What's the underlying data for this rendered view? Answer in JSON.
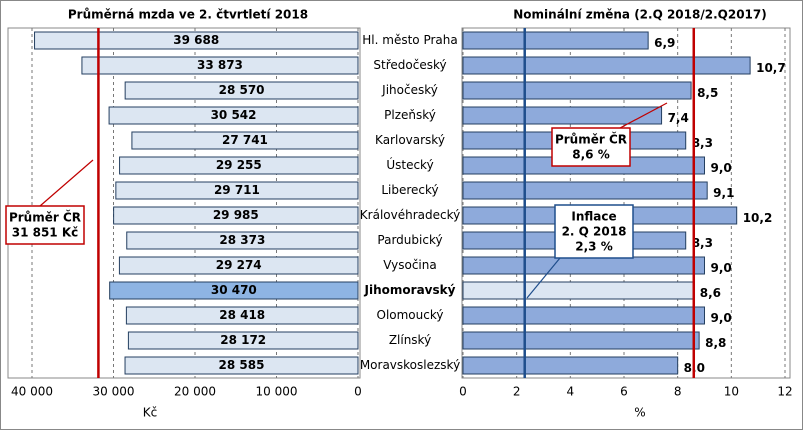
{
  "chart_data": [
    {
      "type": "bar",
      "orientation": "horizontal",
      "reversed": true,
      "title": "Průměrná mzda ve 2. čtvrtletí 2018",
      "xlabel": "Kč",
      "categories": [
        "Hl. město Praha",
        "Středočeský",
        "Jihočeský",
        "Plzeňský",
        "Karlovarský",
        "Ústecký",
        "Liberecký",
        "Královéhradecký",
        "Pardubický",
        "Vysočina",
        "Jihomoravský",
        "Olomoucký",
        "Zlínský",
        "Moravskoslezský"
      ],
      "values": [
        39688,
        33873,
        28570,
        30542,
        27741,
        29255,
        29711,
        29985,
        28373,
        29274,
        30470,
        28418,
        28172,
        28585
      ],
      "value_labels": [
        "39 688",
        "33 873",
        "28 570",
        "30 542",
        "27 741",
        "29 255",
        "29 711",
        "29 985",
        "28 373",
        "29 274",
        "30 470",
        "28 418",
        "28 172",
        "28 585"
      ],
      "color": "#dce6f2",
      "highlight": 10,
      "highlight_color": "#8eb4e3",
      "highlight_text_color": "#0070c0",
      "xlim": [
        40000,
        0
      ],
      "xticks": [
        {
          "value": 40000,
          "label": "40 000"
        },
        {
          "value": 30000,
          "label": "30 000"
        },
        {
          "value": 20000,
          "label": "20 000"
        },
        {
          "value": 10000,
          "label": "10 000"
        },
        0
      ],
      "grid": true,
      "reference_lines": [
        {
          "value": 31851,
          "color": "#c00000",
          "label": [
            "Průměr ČR",
            "31 851 Kč"
          ]
        }
      ]
    },
    {
      "type": "bar",
      "orientation": "horizontal",
      "title": "Nominální změna (2.Q 2018/2.Q2017)",
      "xlabel": "%",
      "values": [
        6.9,
        10.7,
        8.5,
        7.4,
        8.3,
        9.0,
        9.1,
        10.2,
        8.3,
        9.0,
        8.6,
        9.0,
        8.8,
        8.0
      ],
      "value_labels": [
        "6,9",
        "10,7",
        "8,5",
        "7,4",
        "8,3",
        "9,0",
        "9,1",
        "10,2",
        "8,3",
        "9,0",
        "8,6",
        "9,0",
        "8,8",
        "8,0"
      ],
      "color": "#8eaadb",
      "highlight": 10,
      "highlight_color": "#dce6f2",
      "xlim": [
        0,
        12
      ],
      "xticks": [
        0,
        2,
        4,
        6,
        8,
        10,
        12
      ],
      "grid": true,
      "reference_lines": [
        {
          "value": 8.6,
          "color": "#c00000",
          "label": [
            "Průměr ČR",
            "8,6 %"
          ]
        },
        {
          "value": 2.3,
          "color": "#1f4e8c",
          "label": [
            "Inflace",
            "2. Q 2018",
            "2,3 %"
          ]
        }
      ]
    }
  ]
}
